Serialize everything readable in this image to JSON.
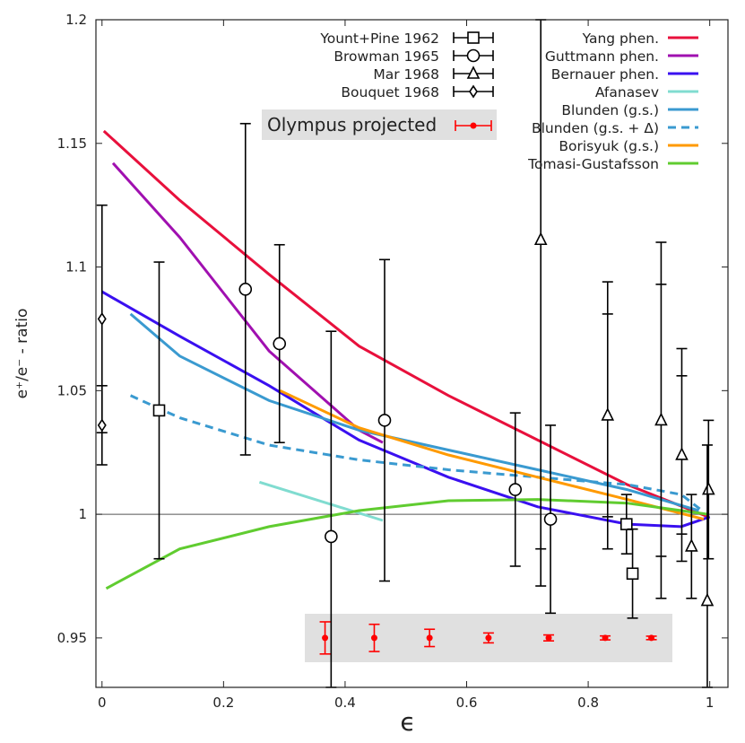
{
  "chart_data": {
    "type": "scatter",
    "title": "",
    "xlabel": "ϵ",
    "ylabel": "e⁺/e⁻ - ratio",
    "xlim": [
      -0.01,
      1.03
    ],
    "ylim": [
      0.93,
      1.2
    ],
    "xticks": [
      "0",
      "0.2",
      "0.4",
      "0.6",
      "0.8",
      "1"
    ],
    "xtick_values": [
      0,
      0.2,
      0.4,
      0.6,
      0.8,
      1
    ],
    "yticks": [
      "0.95",
      "1",
      "1.05",
      "1.1",
      "1.15",
      "1.2"
    ],
    "ytick_values": [
      0.95,
      1.0,
      1.05,
      1.1,
      1.15,
      1.2
    ],
    "grid": false,
    "reference_line": 1.0,
    "legend_placement": "top",
    "data_series": [
      {
        "name": "Yount+Pine 1962",
        "marker": "square",
        "color": "#000000",
        "points": [
          {
            "x": 0.094,
            "y": 1.042,
            "err": 0.06
          },
          {
            "x": 0.863,
            "y": 0.996,
            "err": 0.012
          },
          {
            "x": 0.873,
            "y": 0.976,
            "err": 0.018
          }
        ]
      },
      {
        "name": "Browman 1965",
        "marker": "circle",
        "color": "#000000",
        "points": [
          {
            "x": 0.236,
            "y": 1.091,
            "err": 0.067
          },
          {
            "x": 0.292,
            "y": 1.069,
            "err": 0.04
          },
          {
            "x": 0.377,
            "y": 0.991,
            "err": 0.083
          },
          {
            "x": 0.465,
            "y": 1.038,
            "err": 0.065
          },
          {
            "x": 0.68,
            "y": 1.01,
            "err": 0.031
          },
          {
            "x": 0.738,
            "y": 0.998,
            "err": 0.038
          }
        ]
      },
      {
        "name": "Mar 1968",
        "marker": "triangle",
        "color": "#000000",
        "points": [
          {
            "x": 0.722,
            "y": 1.111,
            "err": 0.14,
            "err_inner": 0.125
          },
          {
            "x": 0.832,
            "y": 1.04,
            "err": 0.054,
            "err_inner": 0.041
          },
          {
            "x": 0.92,
            "y": 1.038,
            "err": 0.072,
            "err_inner": 0.055
          },
          {
            "x": 0.954,
            "y": 1.024,
            "err": 0.043,
            "err_inner": 0.032
          },
          {
            "x": 0.97,
            "y": 0.987,
            "err": 0.021
          },
          {
            "x": 0.998,
            "y": 1.01,
            "err": 0.028
          },
          {
            "x": 0.996,
            "y": 0.965,
            "err": 0.063
          }
        ]
      },
      {
        "name": "Bouquet 1968",
        "marker": "diamond",
        "color": "#000000",
        "points": [
          {
            "x": 0.0,
            "y": 1.079,
            "err": 0.046
          },
          {
            "x": 0.0,
            "y": 1.036,
            "err": 0.016
          }
        ]
      }
    ],
    "projected": {
      "name": "Olympus projected",
      "marker": "dot",
      "color": "#ff0000",
      "points": [
        {
          "x": 0.367,
          "y": 0.95,
          "err": 0.0065
        },
        {
          "x": 0.448,
          "y": 0.95,
          "err": 0.0055
        },
        {
          "x": 0.539,
          "y": 0.95,
          "err": 0.0035
        },
        {
          "x": 0.636,
          "y": 0.95,
          "err": 0.002
        },
        {
          "x": 0.735,
          "y": 0.95,
          "err": 0.0012
        },
        {
          "x": 0.828,
          "y": 0.95,
          "err": 0.0008
        },
        {
          "x": 0.904,
          "y": 0.95,
          "err": 0.0007
        }
      ]
    },
    "curves": [
      {
        "name": "Yang phen.",
        "color": "#e8103c",
        "dash": false,
        "x": [
          0.003,
          0.128,
          0.275,
          0.423,
          0.57,
          0.717,
          0.864,
          0.997
        ],
        "y": [
          1.155,
          1.127,
          1.097,
          1.068,
          1.048,
          1.03,
          1.012,
          0.999
        ]
      },
      {
        "name": "Guttmann phen.",
        "color": "#a010b0",
        "dash": false,
        "x": [
          0.018,
          0.128,
          0.275,
          0.423,
          0.462
        ],
        "y": [
          1.142,
          1.112,
          1.066,
          1.034,
          1.029
        ]
      },
      {
        "name": "Bernauer phen.",
        "color": "#3a10f0",
        "dash": false,
        "x": [
          0.0,
          0.128,
          0.275,
          0.423,
          0.57,
          0.717,
          0.864,
          0.953,
          1.0
        ],
        "y": [
          1.09,
          1.072,
          1.052,
          1.03,
          1.015,
          1.003,
          0.996,
          0.995,
          0.999
        ]
      },
      {
        "name": "Afanasev",
        "color": "#80dcd0",
        "dash": false,
        "x": [
          0.259,
          0.462
        ],
        "y": [
          1.013,
          0.9975
        ]
      },
      {
        "name": "Blunden (g.s.)",
        "color": "#3a9ad0",
        "dash": false,
        "x": [
          0.047,
          0.128,
          0.275,
          0.423,
          0.57,
          0.717,
          0.864,
          0.982
        ],
        "y": [
          1.081,
          1.064,
          1.046,
          1.034,
          1.026,
          1.018,
          1.01,
          1.0015
        ]
      },
      {
        "name": "Blunden (g.s. + Δ)",
        "color": "#3a9ad0",
        "dash": true,
        "x": [
          0.047,
          0.128,
          0.275,
          0.423,
          0.57,
          0.717,
          0.864,
          0.953,
          0.99
        ],
        "y": [
          1.048,
          1.039,
          1.028,
          1.022,
          1.018,
          1.015,
          1.012,
          1.008,
          1.001
        ]
      },
      {
        "name": "Borisyuk (g.s.)",
        "color": "#ff9a00",
        "dash": false,
        "x": [
          0.293,
          0.423,
          0.57,
          0.717,
          0.864,
          0.99
        ],
        "y": [
          1.05,
          1.035,
          1.024,
          1.015,
          1.006,
          0.998
        ]
      },
      {
        "name": "Tomasi-Gustafsson",
        "color": "#60cc30",
        "dash": false,
        "x": [
          0.007,
          0.128,
          0.275,
          0.423,
          0.57,
          0.717,
          0.864,
          0.997
        ],
        "y": [
          0.97,
          0.986,
          0.995,
          1.0015,
          1.0055,
          1.006,
          1.0045,
          1.0
        ]
      }
    ]
  }
}
